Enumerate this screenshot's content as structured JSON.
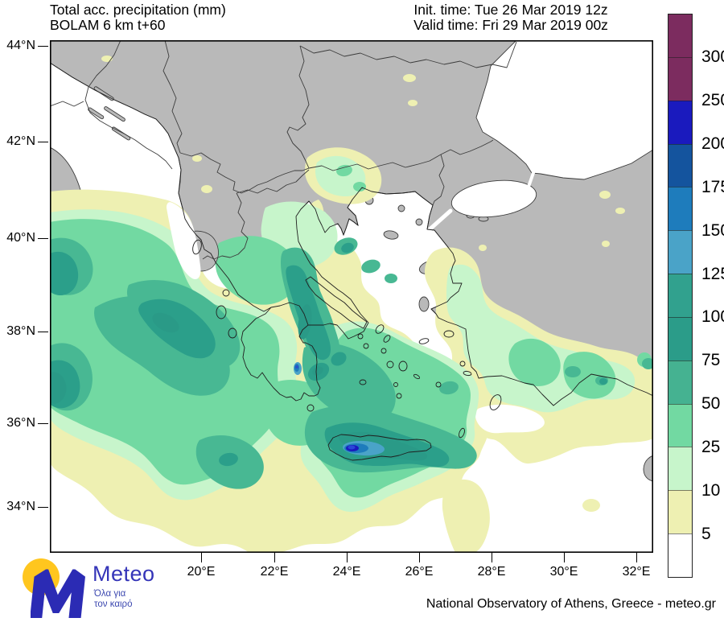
{
  "header": {
    "title_line1": "Total acc. precipitation (mm)",
    "title_line2": "BOLAM 6 km t+60",
    "init_time": "Init. time: Tue 26 Mar 2019 12z",
    "valid_time": "Valid time: Fri 29 Mar 2019 00z"
  },
  "axes": {
    "lat_labels": [
      "44°N",
      "42°N",
      "40°N",
      "38°N",
      "36°N",
      "34°N"
    ],
    "lon_labels": [
      "20°E",
      "22°E",
      "24°E",
      "26°E",
      "28°E",
      "30°E",
      "32°E"
    ]
  },
  "colorbar": {
    "boundary_labels": [
      "300",
      "250",
      "200",
      "175",
      "150",
      "125",
      "100",
      "75",
      "50",
      "25",
      "10",
      "5"
    ],
    "segment_colors_top_to_bottom": [
      "#7c2c5f",
      "#7c2c5f",
      "#1a1abe",
      "#14549e",
      "#1e7cbc",
      "#4aa3c8",
      "#31a18e",
      "#2b9c89",
      "#45b291",
      "#72d9a2",
      "#c7f5cb",
      "#eef0b2",
      "#ffffff"
    ],
    "units": "mm"
  },
  "map_colors": {
    "land_gray": "#b9b9b9",
    "sea_white": "#ffffff",
    "coastline": "#1f1f1f"
  },
  "logo": {
    "brand": "Meteo",
    "tagline_line1": "Όλα για",
    "tagline_line2": "τον καιρό"
  },
  "footer": {
    "attribution": "National Observatory of Athens, Greece - meteo.gr"
  }
}
